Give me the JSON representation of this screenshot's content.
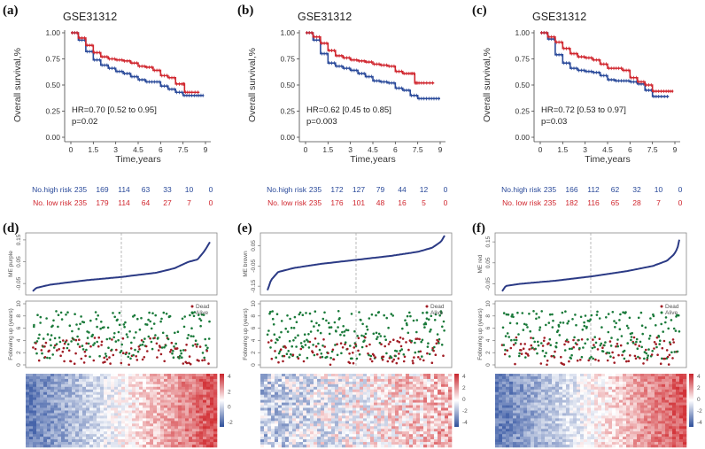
{
  "colors": {
    "high": "#2a4a9a",
    "low": "#d0262e",
    "dead": "#a01c24",
    "alive": "#1a7a3a",
    "me_line": "#2b3a85",
    "frame": "#888888"
  },
  "chart_data": [
    {
      "panel": "(a)",
      "type": "line",
      "title": "GSE31312",
      "xlabel": "Time,years",
      "ylabel": "Overall survival,%",
      "xlim": [
        0,
        9
      ],
      "ylim": [
        0,
        1
      ],
      "xticks": [
        "0",
        "1.5",
        "3",
        "4.5",
        "6",
        "7.5",
        "9"
      ],
      "yticks": [
        "0.00",
        "0.25",
        "0.50",
        "0.75",
        "1.00"
      ],
      "annotation": [
        "HR=0.70 [0.52 to 0.95]",
        "p=0.02"
      ],
      "series": [
        {
          "name": "high risk",
          "color": "#2a4a9a",
          "x": [
            0,
            0.5,
            1,
            1.5,
            2,
            2.5,
            3,
            3.5,
            4,
            4.5,
            5,
            5.5,
            6,
            6.5,
            7,
            7.5,
            8,
            8.5,
            8.9
          ],
          "y": [
            1,
            0.93,
            0.82,
            0.74,
            0.69,
            0.66,
            0.63,
            0.61,
            0.58,
            0.55,
            0.53,
            0.53,
            0.49,
            0.46,
            0.43,
            0.4,
            0.4,
            0.4,
            0.4
          ]
        },
        {
          "name": "low risk",
          "color": "#d0262e",
          "x": [
            0,
            0.5,
            1,
            1.5,
            2,
            2.5,
            3,
            3.5,
            4,
            4.5,
            5,
            5.5,
            6,
            6.5,
            7,
            7.5,
            7.6,
            8,
            8.6
          ],
          "y": [
            1,
            0.95,
            0.88,
            0.81,
            0.77,
            0.75,
            0.74,
            0.73,
            0.71,
            0.68,
            0.67,
            0.64,
            0.59,
            0.57,
            0.51,
            0.51,
            0.43,
            0.43,
            0.43
          ]
        }
      ],
      "risk_table": {
        "high_label": "No.high risk",
        "low_label": "No. low risk",
        "high": [
          "235",
          "169",
          "114",
          "63",
          "33",
          "10",
          "0"
        ],
        "low": [
          "235",
          "179",
          "114",
          "64",
          "27",
          "7",
          "0"
        ]
      }
    },
    {
      "panel": "(b)",
      "type": "line",
      "title": "GSE31312",
      "xlabel": "Time,years",
      "ylabel": "Overall survival,%",
      "xlim": [
        0,
        9
      ],
      "ylim": [
        0,
        1
      ],
      "xticks": [
        "0",
        "1.5",
        "3",
        "4.5",
        "6",
        "7.5",
        "9"
      ],
      "yticks": [
        "0.00",
        "0.25",
        "0.50",
        "0.75",
        "1.00"
      ],
      "annotation": [
        "HR=0.62 [0.45 to 0.85]",
        "p=0.003"
      ],
      "series": [
        {
          "name": "high risk",
          "color": "#2a4a9a",
          "x": [
            0,
            0.5,
            1,
            1.5,
            2,
            2.5,
            3,
            3.5,
            4,
            4.5,
            5,
            5.5,
            6,
            6.5,
            7,
            7.5,
            8,
            8.5,
            9
          ],
          "y": [
            1,
            0.93,
            0.8,
            0.71,
            0.68,
            0.66,
            0.64,
            0.61,
            0.58,
            0.54,
            0.53,
            0.52,
            0.47,
            0.45,
            0.4,
            0.37,
            0.37,
            0.37,
            0.37
          ]
        },
        {
          "name": "low risk",
          "color": "#d0262e",
          "x": [
            0,
            0.5,
            1,
            1.5,
            2,
            2.5,
            3,
            3.5,
            4,
            4.5,
            5,
            5.5,
            6,
            6.5,
            7,
            7.3,
            7.5,
            8,
            8.6
          ],
          "y": [
            1,
            0.96,
            0.9,
            0.83,
            0.78,
            0.76,
            0.74,
            0.73,
            0.72,
            0.7,
            0.69,
            0.68,
            0.63,
            0.61,
            0.61,
            0.52,
            0.52,
            0.52,
            0.52
          ]
        }
      ],
      "risk_table": {
        "high_label": "No.high risk",
        "low_label": "No. low risk",
        "high": [
          "235",
          "172",
          "127",
          "79",
          "44",
          "12",
          "0"
        ],
        "low": [
          "235",
          "176",
          "101",
          "48",
          "16",
          "5",
          "0"
        ]
      }
    },
    {
      "panel": "(c)",
      "type": "line",
      "title": "GSE31312",
      "xlabel": "Time,years",
      "ylabel": "Overall survival,%",
      "xlim": [
        0,
        9
      ],
      "ylim": [
        0,
        1
      ],
      "xticks": [
        "0",
        "1.5",
        "3",
        "4.5",
        "6",
        "7.5",
        "9"
      ],
      "yticks": [
        "0.00",
        "0.25",
        "0.50",
        "0.75",
        "1.00"
      ],
      "annotation": [
        "HR=0.72 [0.53 to 0.97]",
        "p=0.03"
      ],
      "series": [
        {
          "name": "high risk",
          "color": "#2a4a9a",
          "x": [
            0,
            0.5,
            1,
            1.5,
            2,
            2.5,
            3,
            3.5,
            4,
            4.5,
            5,
            5.5,
            6,
            6.5,
            7,
            7.5,
            8,
            8.6
          ],
          "y": [
            1,
            0.94,
            0.79,
            0.71,
            0.66,
            0.64,
            0.63,
            0.62,
            0.59,
            0.55,
            0.54,
            0.54,
            0.53,
            0.51,
            0.45,
            0.39,
            0.39,
            0.39
          ]
        },
        {
          "name": "low risk",
          "color": "#d0262e",
          "x": [
            0,
            0.5,
            1,
            1.5,
            2,
            2.5,
            3,
            3.5,
            4,
            4.5,
            5,
            5.5,
            6,
            6.5,
            7,
            7.5,
            8,
            8.5,
            8.9
          ],
          "y": [
            1,
            0.96,
            0.91,
            0.85,
            0.8,
            0.77,
            0.76,
            0.74,
            0.7,
            0.66,
            0.66,
            0.64,
            0.57,
            0.53,
            0.5,
            0.44,
            0.44,
            0.44,
            0.44
          ]
        }
      ],
      "risk_table": {
        "high_label": "No.high risk",
        "low_label": "No. low risk",
        "high": [
          "235",
          "166",
          "112",
          "62",
          "32",
          "10",
          "0"
        ],
        "low": [
          "235",
          "182",
          "116",
          "65",
          "28",
          "7",
          "0"
        ]
      }
    },
    {
      "panel": "(d)",
      "type": "scatter",
      "module": "purple",
      "me_ylabel": "ME purple",
      "me_yticks": [
        "-0.05",
        "0.05",
        "0.15"
      ],
      "me_ylim": [
        -0.09,
        0.17
      ],
      "me_curve": {
        "q": [
          0,
          0.02,
          0.1,
          0.3,
          0.5,
          0.7,
          0.8,
          0.88,
          0.93,
          0.97,
          1.0
        ],
        "v": [
          -0.085,
          -0.07,
          -0.055,
          -0.035,
          -0.02,
          0.0,
          0.02,
          0.05,
          0.06,
          0.1,
          0.14
        ]
      },
      "fu_ylabel": "Following up (years)",
      "fu_yticks": [
        "0",
        "2",
        "4",
        "6",
        "8",
        "10"
      ],
      "fu_ylim": [
        0,
        10
      ],
      "legend": [
        "Dead",
        "Alive"
      ],
      "n_patients": 470,
      "heatmap_scale": [
        "4",
        "2",
        "0",
        "-2"
      ],
      "heatmap_pattern": "blue-to-red"
    },
    {
      "panel": "(e)",
      "type": "scatter",
      "module": "brown",
      "me_ylabel": "ME brown",
      "me_yticks": [
        "-0.15",
        "-0.05",
        "0.05"
      ],
      "me_ylim": [
        -0.18,
        0.1
      ],
      "me_curve": {
        "q": [
          0,
          0.02,
          0.06,
          0.15,
          0.3,
          0.5,
          0.7,
          0.85,
          0.93,
          0.98,
          1.0
        ],
        "v": [
          -0.17,
          -0.12,
          -0.08,
          -0.06,
          -0.04,
          -0.02,
          0.0,
          0.02,
          0.04,
          0.07,
          0.1
        ]
      },
      "fu_ylabel": "Following up (years)",
      "fu_yticks": [
        "0",
        "2",
        "4",
        "6",
        "8",
        "10"
      ],
      "fu_ylim": [
        0,
        10
      ],
      "legend": [
        "Dead",
        "Alive"
      ],
      "n_patients": 470,
      "heatmap_scale": [
        "4",
        "2",
        "0",
        "-2",
        "-4"
      ],
      "heatmap_pattern": "mixed"
    },
    {
      "panel": "(f)",
      "type": "scatter",
      "module": "red",
      "me_ylabel": "ME red",
      "me_yticks": [
        "-0.05",
        "0.05",
        "0.15"
      ],
      "me_ylim": [
        -0.09,
        0.18
      ],
      "me_curve": {
        "q": [
          0,
          0.02,
          0.1,
          0.3,
          0.5,
          0.7,
          0.85,
          0.93,
          0.97,
          0.99,
          1.0
        ],
        "v": [
          -0.085,
          -0.06,
          -0.05,
          -0.035,
          -0.015,
          0.01,
          0.035,
          0.06,
          0.09,
          0.12,
          0.16
        ]
      },
      "fu_ylabel": "Following up (years)",
      "fu_yticks": [
        "0",
        "2",
        "4",
        "6",
        "8",
        "10"
      ],
      "fu_ylim": [
        0,
        10
      ],
      "legend": [
        "Dead",
        "Alive"
      ],
      "n_patients": 470,
      "heatmap_scale": [
        "4",
        "2",
        "0",
        "-2",
        "-4"
      ],
      "heatmap_pattern": "blue-to-red"
    }
  ]
}
